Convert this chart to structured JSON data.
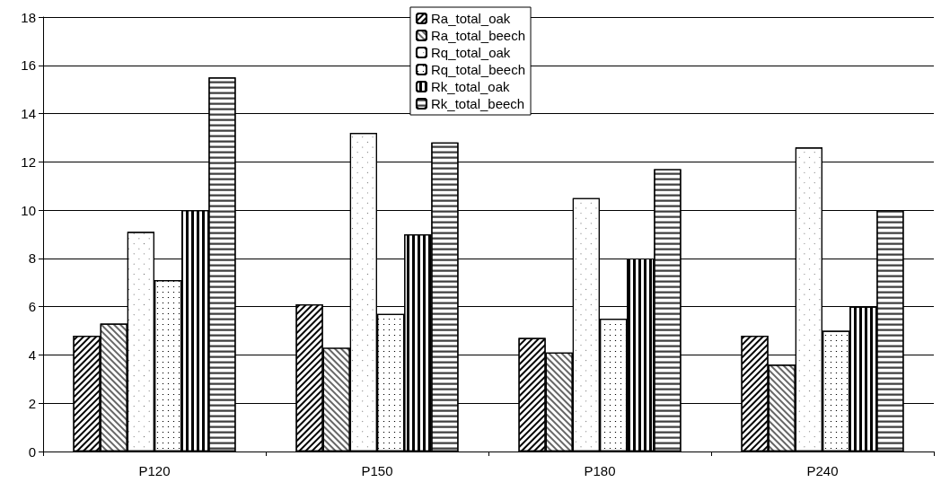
{
  "chart_data": {
    "type": "bar",
    "categories": [
      "P120",
      "P150",
      "P180",
      "P240"
    ],
    "series": [
      {
        "name": "Ra_total_oak",
        "color": "#ffffff",
        "values": [
          4.8,
          6.1,
          4.7,
          4.8
        ]
      },
      {
        "name": "Ra_total_beech",
        "color": "#ffffff",
        "values": [
          5.3,
          4.3,
          4.1,
          3.6
        ]
      },
      {
        "name": "Rq_total_oak",
        "color": "#ffffff",
        "values": [
          9.1,
          13.2,
          10.5,
          12.6
        ]
      },
      {
        "name": "Rq_total_beech",
        "color": "#ffffff",
        "values": [
          7.1,
          5.7,
          5.5,
          5.0
        ]
      },
      {
        "name": "Rk_total_oak",
        "color": "#ffffff",
        "values": [
          10.0,
          9.0,
          8.0,
          6.0
        ]
      },
      {
        "name": "Rk_total_beech",
        "color": "#ffffff",
        "values": [
          15.5,
          12.8,
          11.7,
          10.0
        ]
      }
    ],
    "ylim": [
      0,
      18
    ],
    "yticks": [
      0,
      2,
      4,
      6,
      8,
      10,
      12,
      14,
      16,
      18
    ],
    "grid": "y",
    "legend": "top"
  }
}
